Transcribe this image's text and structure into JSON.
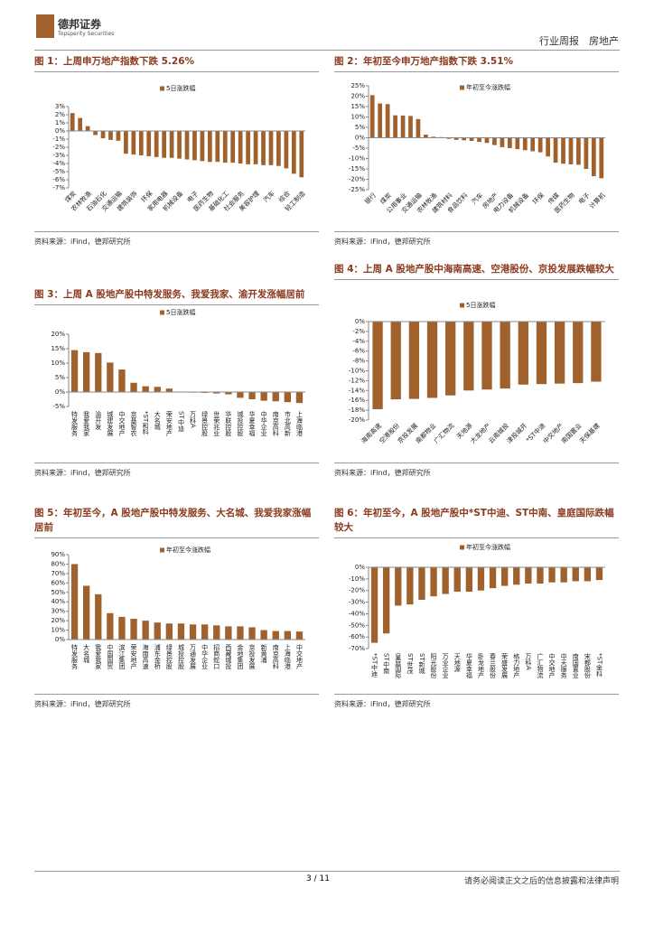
{
  "header": {
    "brand": "德邦证券",
    "brand_en": "Topsperity Securities",
    "section": "行业周报　房地产"
  },
  "footer": {
    "page": "3 / 11",
    "disclaimer": "请务必阅读正文之后的信息披露和法律声明"
  },
  "chart_data": [
    {
      "type": "bar",
      "title": "图 1：上周申万地产指数下跌 5.26%",
      "source": "资料来源：iFind，德邦研究所",
      "categories": [
        "煤炭",
        null,
        "农林牧渔",
        null,
        "石油石化",
        null,
        "交通运输",
        null,
        "建筑装饰",
        null,
        "环保",
        null,
        "家用电器",
        null,
        "机械设备",
        null,
        "电子",
        null,
        "医药生物",
        null,
        "基础化工",
        null,
        "社会服务",
        null,
        "美容护理",
        null,
        "汽车",
        null,
        "综合",
        null,
        "轻工制造"
      ],
      "series": [
        {
          "name": "5日涨跌幅",
          "color": "#a0612d",
          "values": [
            2.2,
            1.6,
            0.6,
            -0.5,
            -0.9,
            -1.1,
            -1.2,
            -2.8,
            -2.9,
            -3.0,
            -3.1,
            -3.2,
            -3.3,
            -3.3,
            -3.4,
            -3.5,
            -3.6,
            -3.7,
            -3.8,
            -3.8,
            -3.9,
            -3.9,
            -4.0,
            -4.1,
            -4.1,
            -4.2,
            -4.2,
            -4.3,
            -4.6,
            -5.26,
            -5.7
          ]
        }
      ],
      "ylim": [
        -7,
        3
      ],
      "yticks": [
        {
          "value": -7,
          "label": "-7%"
        },
        {
          "value": -6,
          "label": "-6%"
        },
        {
          "value": -5,
          "label": "-5%"
        },
        {
          "value": -4,
          "label": "-4%"
        },
        {
          "value": -3,
          "label": "-3%"
        },
        {
          "value": -2,
          "label": "-2%"
        },
        {
          "value": -1,
          "label": "-1%"
        },
        {
          "value": 0,
          "label": "0%"
        },
        {
          "value": 1,
          "label": "1%"
        },
        {
          "value": 2,
          "label": "2%"
        },
        {
          "value": 3,
          "label": "3%"
        }
      ]
    },
    {
      "type": "bar",
      "title": "图 2：年初至今申万地产指数下跌 3.51%",
      "source": "资料来源：iFind，德邦研究所",
      "categories": [
        "银行",
        null,
        "煤炭",
        null,
        "公用事业",
        null,
        "交通运输",
        null,
        "农林牧渔",
        null,
        "建筑材料",
        null,
        "食品饮料",
        null,
        "汽车",
        null,
        "房地产",
        null,
        "电力设备",
        null,
        "机械设备",
        null,
        "环保",
        null,
        "传媒",
        null,
        "医药生物",
        null,
        "电子",
        null,
        "计算机"
      ],
      "series": [
        {
          "name": "年初至今涨跌幅",
          "color": "#a0612d",
          "values": [
            20.5,
            16.5,
            16.2,
            10.8,
            10.7,
            10.5,
            9.0,
            1.5,
            0.5,
            0.3,
            -0.5,
            -1.0,
            -1.2,
            -1.5,
            -2.0,
            -2.5,
            -3.51,
            -4.5,
            -5.0,
            -5.5,
            -6.0,
            -6.5,
            -7.0,
            -9.0,
            -12.0,
            -12.5,
            -12.8,
            -13.0,
            -15.0,
            -18.5,
            -19.5
          ]
        }
      ],
      "ylim": [
        -25,
        25
      ],
      "yticks": [
        {
          "value": -25,
          "label": "-25%"
        },
        {
          "value": -20,
          "label": "-20%"
        },
        {
          "value": -15,
          "label": "-15%"
        },
        {
          "value": -10,
          "label": "-10%"
        },
        {
          "value": -5,
          "label": "-5%"
        },
        {
          "value": 0,
          "label": "0%"
        },
        {
          "value": 5,
          "label": "5%"
        },
        {
          "value": 10,
          "label": "10%"
        },
        {
          "value": 15,
          "label": "15%"
        },
        {
          "value": 20,
          "label": "20%"
        },
        {
          "value": 25,
          "label": "25%"
        }
      ]
    },
    {
      "type": "bar",
      "title": "图 3：上周 A 股地产股中特发服务、我爱我家、渝开发涨幅居前",
      "source": "资料来源：iFind，德邦研究所",
      "categories": [
        "特发服务",
        "我爱我家",
        "渝开发",
        "城建发展",
        "中交地产",
        "京基智农",
        "*ST和科",
        "大名城",
        "荣安地产",
        "ST中迪",
        "万科A",
        "绿景控股",
        "世荣兆业",
        "华联控股",
        "城投控股",
        "华夏幸福",
        "中华企业",
        "南京高科",
        "市北高新",
        "上海临港"
      ],
      "series": [
        {
          "name": "5日涨跌幅",
          "color": "#a0612d",
          "values": [
            14.5,
            13.8,
            13.5,
            10.2,
            7.8,
            3.2,
            2.0,
            1.8,
            1.2,
            -0.1,
            -0.2,
            -0.3,
            -0.5,
            -0.8,
            -2.0,
            -2.5,
            -3.0,
            -3.2,
            -3.5,
            -3.8
          ]
        }
      ],
      "ylim": [
        -5,
        20
      ],
      "yticks": [
        {
          "value": -5,
          "label": "-5%"
        },
        {
          "value": 0,
          "label": "0%"
        },
        {
          "value": 5,
          "label": "5%"
        },
        {
          "value": 10,
          "label": "10%"
        },
        {
          "value": 15,
          "label": "15%"
        },
        {
          "value": 20,
          "label": "20%"
        }
      ]
    },
    {
      "type": "bar",
      "title": "图 4：上周 A 股地产股中海南高速、空港股份、京投发展跌幅较大",
      "source": "资料来源：iFind，德邦研究所",
      "categories": [
        "海南高速",
        "空港股份",
        "京投发展",
        "南都物业",
        "广汇物流",
        "天地源",
        "大龙地产",
        "云南城投",
        "津投城开",
        "*ST中迪",
        "中交地产",
        "南国置业",
        "天保基建"
      ],
      "series": [
        {
          "name": "5日涨跌幅",
          "color": "#a0612d",
          "values": [
            -17.8,
            -15.8,
            -15.7,
            -15.5,
            -15.0,
            -14.0,
            -13.8,
            -13.6,
            -12.8,
            -12.7,
            -12.6,
            -12.5,
            -12.2
          ]
        }
      ],
      "ylim": [
        -20,
        0
      ],
      "yticks": [
        {
          "value": -20,
          "label": "-20%"
        },
        {
          "value": -18,
          "label": "-18%"
        },
        {
          "value": -16,
          "label": "-16%"
        },
        {
          "value": -14,
          "label": "-14%"
        },
        {
          "value": -12,
          "label": "-12%"
        },
        {
          "value": -10,
          "label": "-10%"
        },
        {
          "value": -8,
          "label": "-8%"
        },
        {
          "value": -6,
          "label": "-6%"
        },
        {
          "value": -4,
          "label": "-4%"
        },
        {
          "value": -2,
          "label": "-2%"
        },
        {
          "value": 0,
          "label": "0%"
        }
      ]
    },
    {
      "type": "bar",
      "title": "图 5：年初至今，A 股地产股中特发服务、大名城、我爱我家涨幅居前",
      "source": "资料来源：iFind，德邦研究所",
      "categories": [
        "特发服务",
        "大名城",
        "我爱我家",
        "中国国贸",
        "滨江集团",
        "荣安地产",
        "海南高速",
        "浦东金桥",
        "绿景控股",
        "城投控股",
        "万通发展",
        "中华企业",
        "招商蛇口",
        "西藏城投",
        "金地集团",
        "京投发展",
        "新黄浦",
        "南京高科",
        "上海临港",
        "中交地产"
      ],
      "series": [
        {
          "name": "年初至今涨跌幅",
          "color": "#a0612d",
          "values": [
            80,
            57,
            48,
            28,
            24,
            22,
            20,
            18,
            17,
            17,
            16,
            16,
            15,
            14,
            14,
            13,
            10,
            9,
            9,
            8.5
          ]
        }
      ],
      "ylim": [
        0,
        90
      ],
      "yticks": [
        {
          "value": 0,
          "label": "0%"
        },
        {
          "value": 10,
          "label": "10%"
        },
        {
          "value": 20,
          "label": "20%"
        },
        {
          "value": 30,
          "label": "30%"
        },
        {
          "value": 40,
          "label": "40%"
        },
        {
          "value": 50,
          "label": "50%"
        },
        {
          "value": 60,
          "label": "60%"
        },
        {
          "value": 70,
          "label": "70%"
        },
        {
          "value": 80,
          "label": "80%"
        },
        {
          "value": 90,
          "label": "90%"
        }
      ]
    },
    {
      "type": "bar",
      "title": "图 6：年初至今，A 股地产股中*ST中迪、ST中南、皇庭国际跌幅较大",
      "source": "资料来源：iFind，德邦研究所",
      "categories": [
        "*ST中迪",
        "ST中南",
        "皇庭国际",
        "ST世茂",
        "ST新城",
        "阳光股份",
        "万业企业",
        "天地源",
        "华夏幸福",
        "卧龙地产",
        "春兰股份",
        "荣盛发展",
        "格力地产",
        "万科A",
        "广汇物流",
        "中交地产",
        "中天服务",
        "南国置业",
        "宋都股份",
        "*ST金科"
      ],
      "series": [
        {
          "name": "年初至今涨跌幅",
          "color": "#a0612d",
          "values": [
            -65,
            -57,
            -33,
            -32,
            -28,
            -25,
            -23,
            -21,
            -21,
            -20,
            -18,
            -16,
            -15,
            -14,
            -14,
            -13,
            -13,
            -12,
            -12,
            -11
          ]
        }
      ],
      "ylim": [
        -70,
        0
      ],
      "yticks": [
        {
          "value": -70,
          "label": "-70%"
        },
        {
          "value": -60,
          "label": "-60%"
        },
        {
          "value": -50,
          "label": "-50%"
        },
        {
          "value": -40,
          "label": "-40%"
        },
        {
          "value": -30,
          "label": "-30%"
        },
        {
          "value": -20,
          "label": "-20%"
        },
        {
          "value": -10,
          "label": "-10%"
        },
        {
          "value": 0,
          "label": "0%"
        }
      ]
    }
  ]
}
